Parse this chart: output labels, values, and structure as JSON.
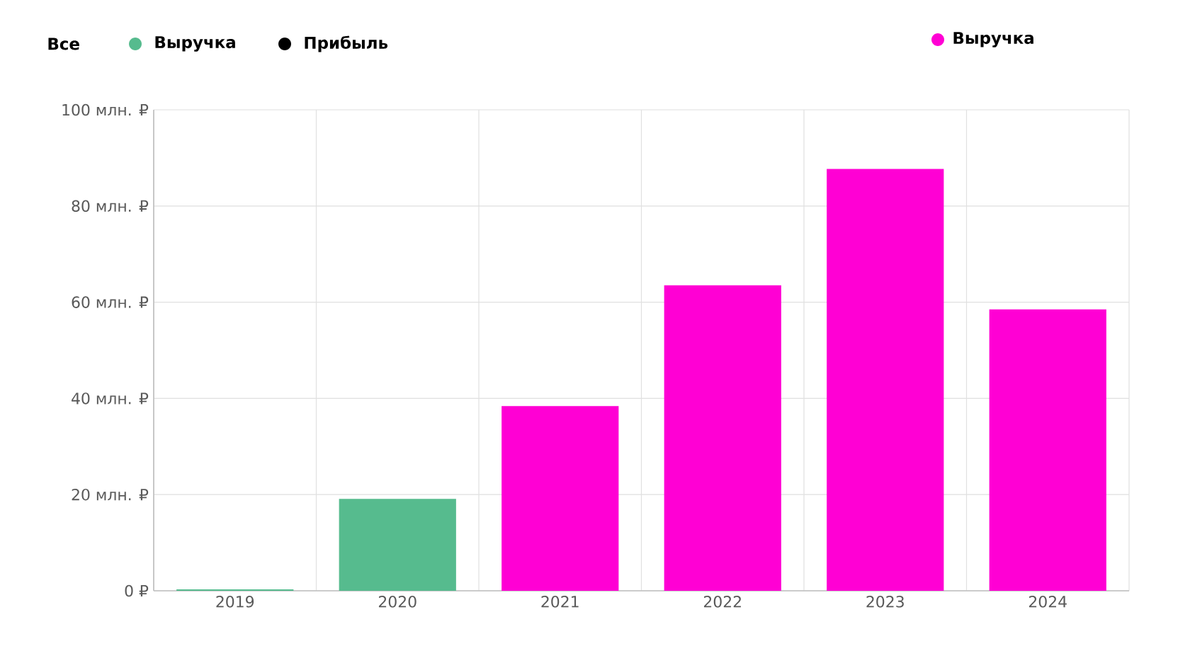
{
  "chart_data": {
    "type": "bar",
    "categories": [
      "2019",
      "2020",
      "2021",
      "2022",
      "2023",
      "2024"
    ],
    "series": [
      {
        "name": "Выручка",
        "color": "#56bb8e",
        "values": [
          0.3,
          19.1,
          null,
          null,
          null,
          null
        ]
      },
      {
        "name": "Прибыль",
        "color": "#000000",
        "values": [
          null,
          null,
          null,
          null,
          null,
          null
        ]
      },
      {
        "name": "Выручка",
        "color": "#ff00d4",
        "values": [
          null,
          null,
          38.4,
          63.5,
          87.7,
          58.5
        ]
      }
    ],
    "ylim": [
      0,
      100
    ],
    "yticks": [
      {
        "value": 0,
        "label": "0 ₽"
      },
      {
        "value": 20,
        "label": "20 млн. ₽"
      },
      {
        "value": 40,
        "label": "40 млн. ₽"
      },
      {
        "value": 60,
        "label": "60 млн. ₽"
      },
      {
        "value": 80,
        "label": "80 млн. ₽"
      },
      {
        "value": 100,
        "label": "100 млн. ₽"
      }
    ],
    "grid": true,
    "legend": "top",
    "annotations": [
      "Все"
    ]
  }
}
